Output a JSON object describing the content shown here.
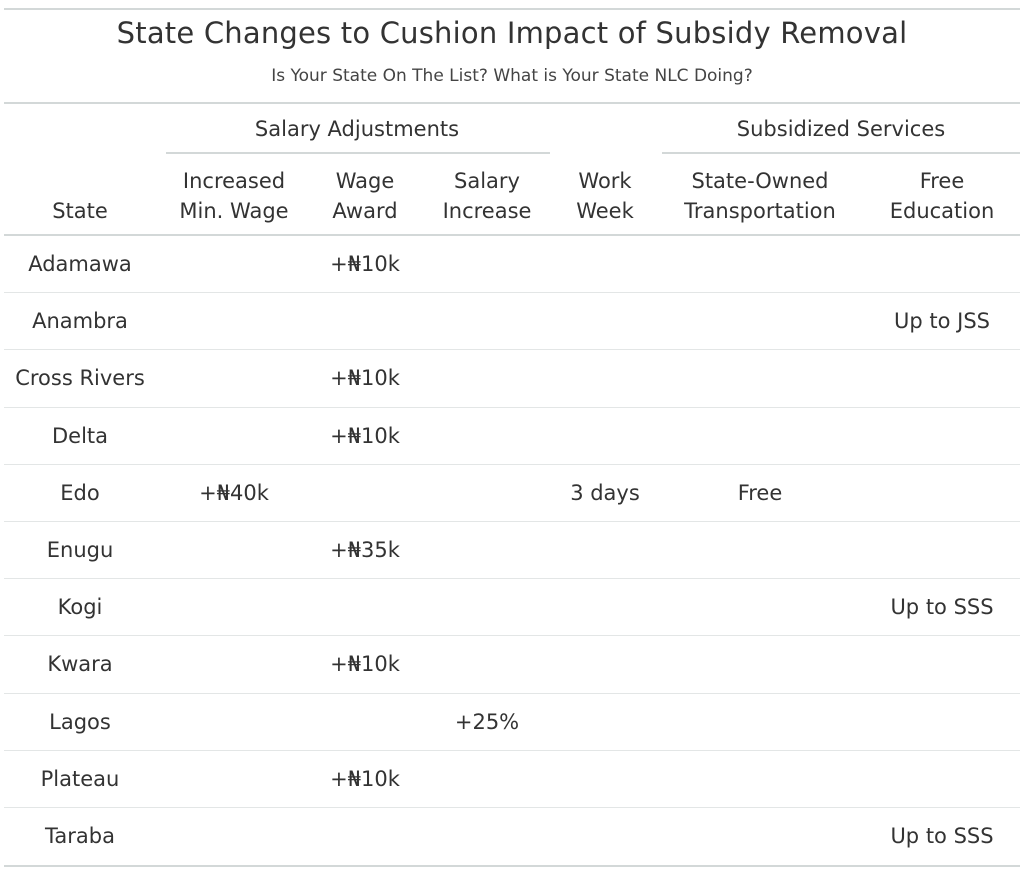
{
  "table": {
    "title": "State Changes to Cushion Impact of Subsidy Removal",
    "subtitle": "Is Your State On The List? What is Your State NLC Doing?",
    "spanners": {
      "salary_adjustments": "Salary Adjustments",
      "subsidized_services": "Subsidized Services"
    },
    "columns": {
      "state": "State",
      "min_wage": "Increased\nMin. Wage",
      "wage_award": "Wage\nAward",
      "salary_increase": "Salary\nIncrease",
      "work_week": "Work\nWeek",
      "transport": "State-Owned\nTransportation",
      "education": "Free\nEducation"
    },
    "rows": [
      {
        "state": "Adamawa",
        "min_wage": "",
        "wage_award": "+₦10k",
        "salary_increase": "",
        "work_week": "",
        "transport": "",
        "education": ""
      },
      {
        "state": "Anambra",
        "min_wage": "",
        "wage_award": "",
        "salary_increase": "",
        "work_week": "",
        "transport": "",
        "education": "Up to JSS"
      },
      {
        "state": "Cross Rivers",
        "min_wage": "",
        "wage_award": "+₦10k",
        "salary_increase": "",
        "work_week": "",
        "transport": "",
        "education": ""
      },
      {
        "state": "Delta",
        "min_wage": "",
        "wage_award": "+₦10k",
        "salary_increase": "",
        "work_week": "",
        "transport": "",
        "education": ""
      },
      {
        "state": "Edo",
        "min_wage": "+₦40k",
        "wage_award": "",
        "salary_increase": "",
        "work_week": "3 days",
        "transport": "Free",
        "education": ""
      },
      {
        "state": "Enugu",
        "min_wage": "",
        "wage_award": "+₦35k",
        "salary_increase": "",
        "work_week": "",
        "transport": "",
        "education": ""
      },
      {
        "state": "Kogi",
        "min_wage": "",
        "wage_award": "",
        "salary_increase": "",
        "work_week": "",
        "transport": "",
        "education": "Up to SSS"
      },
      {
        "state": "Kwara",
        "min_wage": "",
        "wage_award": "+₦10k",
        "salary_increase": "",
        "work_week": "",
        "transport": "",
        "education": ""
      },
      {
        "state": "Lagos",
        "min_wage": "",
        "wage_award": "",
        "salary_increase": "+25%",
        "work_week": "",
        "transport": "",
        "education": ""
      },
      {
        "state": "Plateau",
        "min_wage": "",
        "wage_award": "+₦10k",
        "salary_increase": "",
        "work_week": "",
        "transport": "",
        "education": ""
      },
      {
        "state": "Taraba",
        "min_wage": "",
        "wage_award": "",
        "salary_increase": "",
        "work_week": "",
        "transport": "",
        "education": "Up to SSS"
      }
    ]
  },
  "colors": {
    "text": "#333333",
    "rule": "#d3d8d8",
    "row_rule": "#e3e6e6",
    "background": "#ffffff"
  }
}
